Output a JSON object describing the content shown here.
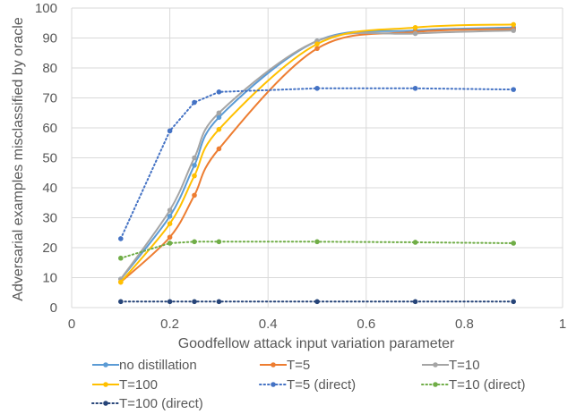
{
  "chart_data": {
    "type": "line",
    "title": "",
    "xlabel": "Goodfellow attack input variation parameter",
    "ylabel": "Adversarial examples misclassified by oracle",
    "xlim": [
      0,
      1
    ],
    "ylim": [
      0,
      100
    ],
    "x_ticks": [
      "0",
      "0.2",
      "0.4",
      "0.6",
      "0.8",
      "1"
    ],
    "y_ticks": [
      "0",
      "10",
      "20",
      "30",
      "40",
      "50",
      "60",
      "70",
      "80",
      "90",
      "100"
    ],
    "grid": "horizontal and vertical",
    "legend_position": "bottom",
    "x": [
      0.1,
      0.2,
      0.25,
      0.3,
      0.5,
      0.7,
      0.9
    ],
    "series": [
      {
        "name": "no distillation",
        "color": "#5B9BD5",
        "style": "solid",
        "smooth": true,
        "values": [
          9.5,
          30.5,
          47.5,
          63.5,
          89,
          92.5,
          93.5
        ]
      },
      {
        "name": "T=5",
        "color": "#ED7D31",
        "style": "solid",
        "smooth": true,
        "values": [
          8.5,
          23.5,
          37.5,
          53,
          86.5,
          92,
          93
        ]
      },
      {
        "name": "T=10",
        "color": "#A5A5A5",
        "style": "solid",
        "smooth": true,
        "values": [
          9.5,
          32.5,
          50,
          65,
          89,
          91.5,
          92.5
        ]
      },
      {
        "name": "T=100",
        "color": "#FFC000",
        "style": "solid",
        "smooth": true,
        "values": [
          8.5,
          28,
          44,
          59.5,
          88,
          93.5,
          94.5
        ]
      },
      {
        "name": "T=5 (direct)",
        "color": "#4472C4",
        "style": "dotted",
        "smooth": false,
        "values": [
          23,
          59,
          68.5,
          72,
          73.2,
          73.2,
          72.8
        ]
      },
      {
        "name": "T=10 (direct)",
        "color": "#70AD47",
        "style": "dotted",
        "smooth": false,
        "values": [
          16.5,
          21.5,
          22,
          22,
          22,
          21.8,
          21.5
        ]
      },
      {
        "name": "T=100 (direct)",
        "color": "#264478",
        "style": "dotted",
        "smooth": false,
        "values": [
          2,
          2,
          2,
          2,
          2,
          2,
          2
        ]
      }
    ]
  }
}
